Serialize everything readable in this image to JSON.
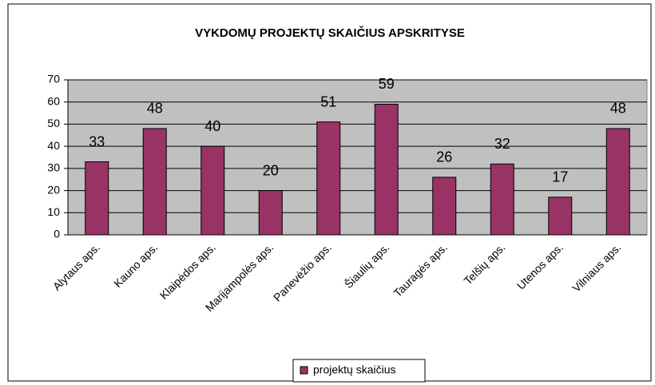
{
  "chart_data": {
    "type": "bar",
    "title": "VYKDOMŲ PROJEKTŲ SKAIČIUS APSKRITYSE",
    "categories": [
      "Alytaus aps.",
      "Kauno aps.",
      "Klaipėdos aps.",
      "Marijampolės aps.",
      "Panevėžio aps.",
      "Šiaulių aps.",
      "Tauragės aps.",
      "Telšių aps.",
      "Utenos aps.",
      "Vilniaus aps."
    ],
    "series": [
      {
        "name": "projektų skaičius",
        "color": "#993366",
        "values": [
          33,
          48,
          40,
          20,
          51,
          59,
          26,
          32,
          17,
          48
        ]
      }
    ],
    "ylim": [
      0,
      70
    ],
    "yticks": [
      0,
      10,
      20,
      30,
      40,
      50,
      60,
      70
    ],
    "grid": true,
    "legend": "bottom"
  }
}
